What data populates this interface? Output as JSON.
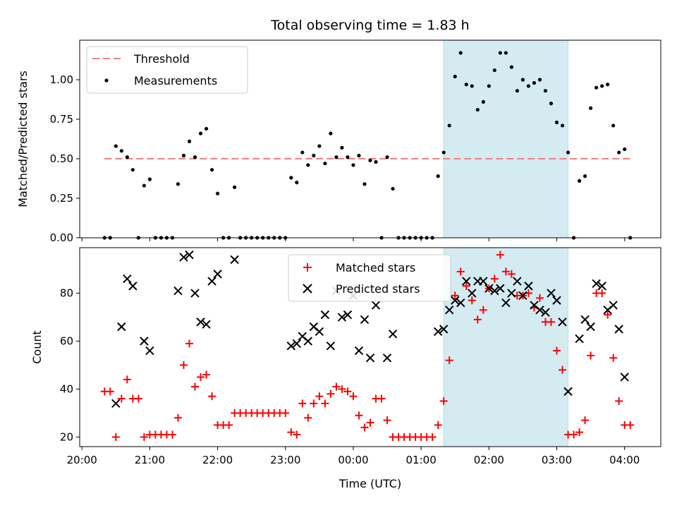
{
  "chart_data": [
    {
      "type": "scatter",
      "title": "Total observing time = 1.83 h",
      "xlabel": "",
      "ylabel": "Matched/Predicted stars",
      "xlim": [
        "20:00",
        "04:30"
      ],
      "ylim": [
        0,
        1.25
      ],
      "yticks": [
        "0.00",
        "0.25",
        "0.50",
        "0.75",
        "1.00"
      ],
      "grid": false,
      "legend": "top-left",
      "shaded_region": {
        "from": "01:20",
        "to": "03:10",
        "color": "#d4ebf2"
      },
      "series": [
        {
          "name": "Threshold",
          "kind": "dashed-line",
          "color": "#f08080",
          "points": [
            [
              "20:20",
              0.5
            ],
            [
              "04:05",
              0.5
            ]
          ]
        },
        {
          "name": "Measurements",
          "kind": "dots",
          "color": "#000000",
          "points": [
            [
              "20:20",
              0.0
            ],
            [
              "20:25",
              0.0
            ],
            [
              "20:30",
              0.58
            ],
            [
              "20:35",
              0.55
            ],
            [
              "20:40",
              0.51
            ],
            [
              "20:45",
              0.43
            ],
            [
              "20:50",
              0.0
            ],
            [
              "20:55",
              0.33
            ],
            [
              "21:00",
              0.37
            ],
            [
              "21:05",
              0.0
            ],
            [
              "21:10",
              0.0
            ],
            [
              "21:15",
              0.0
            ],
            [
              "21:20",
              0.0
            ],
            [
              "21:25",
              0.34
            ],
            [
              "21:30",
              0.52
            ],
            [
              "21:35",
              0.61
            ],
            [
              "21:40",
              0.51
            ],
            [
              "21:45",
              0.66
            ],
            [
              "21:50",
              0.69
            ],
            [
              "21:55",
              0.43
            ],
            [
              "22:00",
              0.28
            ],
            [
              "22:05",
              0.0
            ],
            [
              "22:10",
              0.0
            ],
            [
              "22:15",
              0.32
            ],
            [
              "22:20",
              0.0
            ],
            [
              "22:25",
              0.0
            ],
            [
              "22:30",
              0.0
            ],
            [
              "22:35",
              0.0
            ],
            [
              "22:40",
              0.0
            ],
            [
              "22:45",
              0.0
            ],
            [
              "22:50",
              0.0
            ],
            [
              "22:55",
              0.0
            ],
            [
              "23:00",
              0.0
            ],
            [
              "23:05",
              0.38
            ],
            [
              "23:10",
              0.35
            ],
            [
              "23:15",
              0.54
            ],
            [
              "23:20",
              0.46
            ],
            [
              "23:25",
              0.52
            ],
            [
              "23:30",
              0.58
            ],
            [
              "23:35",
              0.47
            ],
            [
              "23:40",
              0.66
            ],
            [
              "23:45",
              0.51
            ],
            [
              "23:50",
              0.57
            ],
            [
              "23:55",
              0.51
            ],
            [
              "00:00",
              0.46
            ],
            [
              "00:05",
              0.52
            ],
            [
              "00:10",
              0.34
            ],
            [
              "00:15",
              0.49
            ],
            [
              "00:20",
              0.48
            ],
            [
              "00:25",
              0.0
            ],
            [
              "00:30",
              0.51
            ],
            [
              "00:35",
              0.31
            ],
            [
              "00:40",
              0.0
            ],
            [
              "00:45",
              0.0
            ],
            [
              "00:50",
              0.0
            ],
            [
              "00:55",
              0.0
            ],
            [
              "01:00",
              0.0
            ],
            [
              "01:05",
              0.0
            ],
            [
              "01:10",
              0.0
            ],
            [
              "01:15",
              0.39
            ],
            [
              "01:20",
              0.54
            ],
            [
              "01:25",
              0.71
            ],
            [
              "01:30",
              1.02
            ],
            [
              "01:35",
              1.17
            ],
            [
              "01:40",
              0.97
            ],
            [
              "01:45",
              0.96
            ],
            [
              "01:50",
              0.81
            ],
            [
              "01:55",
              0.86
            ],
            [
              "02:00",
              0.96
            ],
            [
              "02:05",
              1.06
            ],
            [
              "02:10",
              1.17
            ],
            [
              "02:15",
              1.17
            ],
            [
              "02:20",
              1.08
            ],
            [
              "02:25",
              0.93
            ],
            [
              "02:30",
              1.0
            ],
            [
              "02:35",
              0.96
            ],
            [
              "02:40",
              0.98
            ],
            [
              "02:45",
              1.0
            ],
            [
              "02:50",
              0.93
            ],
            [
              "02:55",
              0.85
            ],
            [
              "03:00",
              0.73
            ],
            [
              "03:05",
              0.71
            ],
            [
              "03:10",
              0.54
            ],
            [
              "03:15",
              0.0
            ],
            [
              "03:20",
              0.36
            ],
            [
              "03:25",
              0.39
            ],
            [
              "03:30",
              0.82
            ],
            [
              "03:35",
              0.95
            ],
            [
              "03:40",
              0.96
            ],
            [
              "03:45",
              0.97
            ],
            [
              "03:50",
              0.71
            ],
            [
              "03:55",
              0.54
            ],
            [
              "04:00",
              0.56
            ],
            [
              "04:05",
              0.0
            ]
          ]
        }
      ]
    },
    {
      "type": "scatter",
      "title": "",
      "xlabel": "Time (UTC)",
      "ylabel": "Count",
      "xlim": [
        "20:00",
        "04:30"
      ],
      "ylim": [
        16,
        99
      ],
      "yticks": [
        "20",
        "40",
        "60",
        "80"
      ],
      "xticks": [
        "20:00",
        "21:00",
        "22:00",
        "23:00",
        "00:00",
        "01:00",
        "02:00",
        "03:00",
        "04:00"
      ],
      "grid": false,
      "legend": "top-center",
      "shaded_region": {
        "from": "01:20",
        "to": "03:10",
        "color": "#d4ebf2"
      },
      "series": [
        {
          "name": "Matched stars",
          "kind": "plus",
          "color": "#ff0000",
          "points": [
            [
              "20:20",
              39
            ],
            [
              "20:25",
              39
            ],
            [
              "20:30",
              20
            ],
            [
              "20:35",
              36
            ],
            [
              "20:40",
              44
            ],
            [
              "20:45",
              36
            ],
            [
              "20:50",
              36
            ],
            [
              "20:55",
              20
            ],
            [
              "21:00",
              21
            ],
            [
              "21:05",
              21
            ],
            [
              "21:10",
              21
            ],
            [
              "21:15",
              21
            ],
            [
              "21:20",
              21
            ],
            [
              "21:25",
              28
            ],
            [
              "21:30",
              50
            ],
            [
              "21:35",
              59
            ],
            [
              "21:40",
              41
            ],
            [
              "21:45",
              45
            ],
            [
              "21:50",
              46
            ],
            [
              "21:55",
              37
            ],
            [
              "22:00",
              25
            ],
            [
              "22:05",
              25
            ],
            [
              "22:10",
              25
            ],
            [
              "22:15",
              30
            ],
            [
              "22:20",
              30
            ],
            [
              "22:25",
              30
            ],
            [
              "22:30",
              30
            ],
            [
              "22:35",
              30
            ],
            [
              "22:40",
              30
            ],
            [
              "22:45",
              30
            ],
            [
              "22:50",
              30
            ],
            [
              "22:55",
              30
            ],
            [
              "23:00",
              30
            ],
            [
              "23:05",
              22
            ],
            [
              "23:10",
              21
            ],
            [
              "23:15",
              34
            ],
            [
              "23:20",
              28
            ],
            [
              "23:25",
              34
            ],
            [
              "23:30",
              37
            ],
            [
              "23:35",
              34
            ],
            [
              "23:40",
              38
            ],
            [
              "23:45",
              41
            ],
            [
              "23:50",
              40
            ],
            [
              "23:55",
              39
            ],
            [
              "00:00",
              37
            ],
            [
              "00:05",
              29
            ],
            [
              "00:10",
              24
            ],
            [
              "00:15",
              26
            ],
            [
              "00:20",
              36
            ],
            [
              "00:25",
              36
            ],
            [
              "00:30",
              27
            ],
            [
              "00:35",
              20
            ],
            [
              "00:40",
              20
            ],
            [
              "00:45",
              20
            ],
            [
              "00:50",
              20
            ],
            [
              "00:55",
              20
            ],
            [
              "01:00",
              20
            ],
            [
              "01:05",
              20
            ],
            [
              "01:10",
              20
            ],
            [
              "01:15",
              25
            ],
            [
              "01:20",
              35
            ],
            [
              "01:25",
              52
            ],
            [
              "01:30",
              79
            ],
            [
              "01:35",
              89
            ],
            [
              "01:40",
              83
            ],
            [
              "01:45",
              77
            ],
            [
              "01:50",
              69
            ],
            [
              "01:55",
              73
            ],
            [
              "02:00",
              82
            ],
            [
              "02:05",
              86
            ],
            [
              "02:10",
              96
            ],
            [
              "02:15",
              89
            ],
            [
              "02:20",
              88
            ],
            [
              "02:25",
              79
            ],
            [
              "02:30",
              79
            ],
            [
              "02:35",
              80
            ],
            [
              "02:40",
              74
            ],
            [
              "02:45",
              78
            ],
            [
              "02:50",
              68
            ],
            [
              "02:55",
              68
            ],
            [
              "03:00",
              56
            ],
            [
              "03:05",
              48
            ],
            [
              "03:10",
              21
            ],
            [
              "03:15",
              21
            ],
            [
              "03:20",
              22
            ],
            [
              "03:25",
              27
            ],
            [
              "03:30",
              54
            ],
            [
              "03:35",
              80
            ],
            [
              "03:40",
              80
            ],
            [
              "03:45",
              71
            ],
            [
              "03:50",
              53
            ],
            [
              "03:55",
              35
            ],
            [
              "04:00",
              25
            ],
            [
              "04:05",
              25
            ]
          ]
        },
        {
          "name": "Predicted stars",
          "kind": "cross",
          "color": "#000000",
          "points": [
            [
              "20:30",
              34
            ],
            [
              "20:35",
              66
            ],
            [
              "20:40",
              86
            ],
            [
              "20:45",
              83
            ],
            [
              "20:55",
              60
            ],
            [
              "21:00",
              56
            ],
            [
              "21:25",
              81
            ],
            [
              "21:30",
              95
            ],
            [
              "21:35",
              96
            ],
            [
              "21:40",
              80
            ],
            [
              "21:45",
              68
            ],
            [
              "21:50",
              67
            ],
            [
              "21:55",
              85
            ],
            [
              "22:00",
              88
            ],
            [
              "22:15",
              94
            ],
            [
              "23:05",
              58
            ],
            [
              "23:10",
              59
            ],
            [
              "23:15",
              62
            ],
            [
              "23:20",
              60
            ],
            [
              "23:25",
              66
            ],
            [
              "23:30",
              64
            ],
            [
              "23:35",
              71
            ],
            [
              "23:40",
              58
            ],
            [
              "23:45",
              81
            ],
            [
              "23:50",
              70
            ],
            [
              "23:55",
              71
            ],
            [
              "00:00",
              79
            ],
            [
              "00:05",
              56
            ],
            [
              "00:10",
              69
            ],
            [
              "00:15",
              53
            ],
            [
              "00:20",
              75
            ],
            [
              "00:30",
              53
            ],
            [
              "00:35",
              63
            ],
            [
              "01:15",
              64
            ],
            [
              "01:20",
              65
            ],
            [
              "01:25",
              73
            ],
            [
              "01:30",
              77
            ],
            [
              "01:35",
              76
            ],
            [
              "01:40",
              85
            ],
            [
              "01:45",
              80
            ],
            [
              "01:50",
              85
            ],
            [
              "01:55",
              85
            ],
            [
              "02:00",
              82
            ],
            [
              "02:05",
              81
            ],
            [
              "02:10",
              82
            ],
            [
              "02:15",
              76
            ],
            [
              "02:20",
              80
            ],
            [
              "02:25",
              85
            ],
            [
              "02:30",
              79
            ],
            [
              "02:35",
              83
            ],
            [
              "02:40",
              75
            ],
            [
              "02:45",
              73
            ],
            [
              "02:50",
              72
            ],
            [
              "02:55",
              80
            ],
            [
              "03:00",
              77
            ],
            [
              "03:05",
              68
            ],
            [
              "03:10",
              39
            ],
            [
              "03:20",
              61
            ],
            [
              "03:25",
              69
            ],
            [
              "03:30",
              66
            ],
            [
              "03:35",
              84
            ],
            [
              "03:40",
              83
            ],
            [
              "03:45",
              73
            ],
            [
              "03:50",
              75
            ],
            [
              "03:55",
              65
            ],
            [
              "04:00",
              45
            ]
          ]
        }
      ]
    }
  ]
}
